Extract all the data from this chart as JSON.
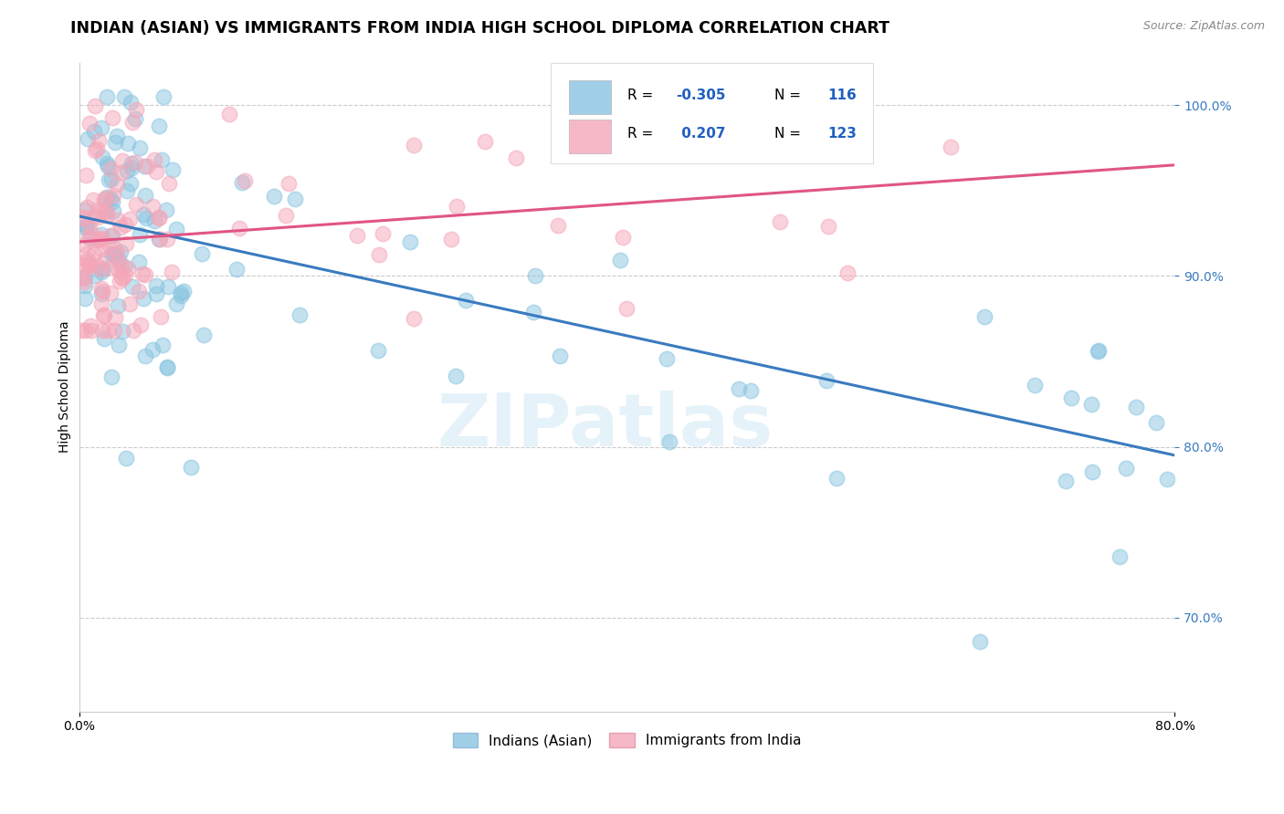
{
  "title": "INDIAN (ASIAN) VS IMMIGRANTS FROM INDIA HIGH SCHOOL DIPLOMA CORRELATION CHART",
  "source": "Source: ZipAtlas.com",
  "ylabel": "High School Diploma",
  "legend_label1": "Indians (Asian)",
  "legend_label2": "Immigrants from India",
  "watermark": "ZIPatlas",
  "blue_color": "#89c4e1",
  "pink_color": "#f4a7b9",
  "blue_line_color": "#3a7bbf",
  "pink_line_color": "#e05585",
  "xlim": [
    0.0,
    0.8
  ],
  "ylim": [
    0.645,
    1.025
  ],
  "yticks": [
    0.7,
    0.8,
    0.9,
    1.0
  ],
  "ytick_labels": [
    "70.0%",
    "80.0%",
    "90.0%",
    "100.0%"
  ],
  "blue_line_x0": 0.0,
  "blue_line_y0": 0.935,
  "blue_line_x1": 0.8,
  "blue_line_y1": 0.795,
  "pink_line_x0": 0.0,
  "pink_line_y0": 0.92,
  "pink_line_x1": 0.8,
  "pink_line_y1": 0.965
}
